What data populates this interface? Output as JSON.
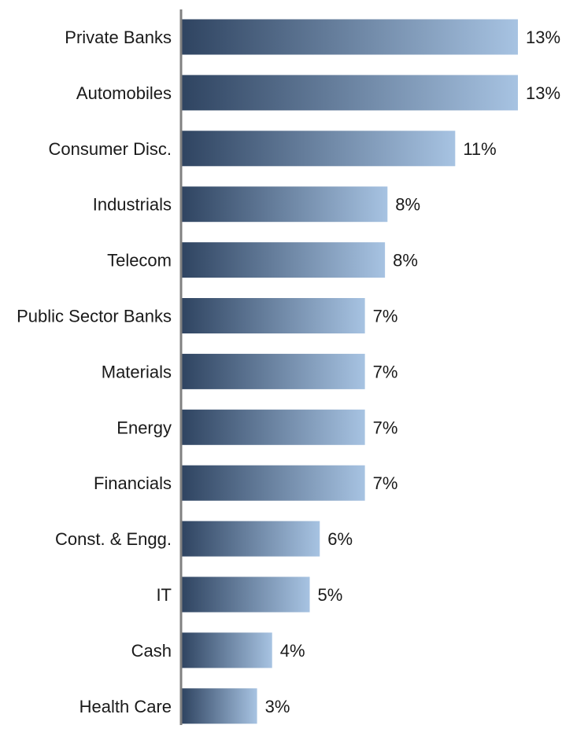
{
  "chart_data": {
    "type": "bar",
    "orientation": "horizontal",
    "categories": [
      "Private Banks",
      "Automobiles",
      "Consumer Disc.",
      "Industrials",
      "Telecom",
      "Public Sector Banks",
      "Materials",
      "Energy",
      "Financials",
      "Const. & Engg.",
      "IT",
      "Cash",
      "Health Care"
    ],
    "values": [
      13,
      13,
      11,
      8,
      8,
      7,
      7,
      7,
      7,
      6,
      5,
      4,
      3
    ],
    "value_labels": [
      "13%",
      "13%",
      "11%",
      "8%",
      "8%",
      "7%",
      "7%",
      "7%",
      "7%",
      "6%",
      "5%",
      "4%",
      "3%"
    ],
    "value_precise": [
      13.4,
      13.4,
      10.9,
      8.2,
      8.1,
      7.3,
      7.3,
      7.3,
      7.3,
      5.5,
      5.1,
      3.6,
      3.0
    ],
    "xlim": [
      0,
      14
    ],
    "grid": false,
    "legend": false,
    "bar_color_start": "#2f4461",
    "bar_color_end": "#a7c3e2",
    "axis_color": "#808080"
  }
}
